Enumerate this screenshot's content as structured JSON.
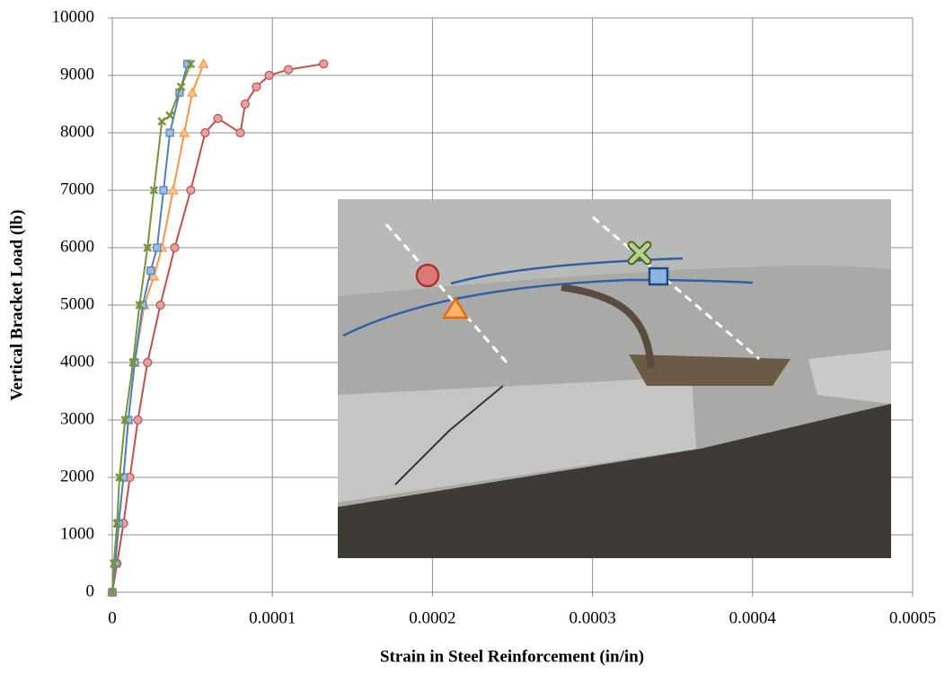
{
  "chart_data": {
    "type": "scatter",
    "xlabel": "Strain in Steel Reinforcement (in/in)",
    "ylabel": "Vertical Bracket Load (lb)",
    "xlim": [
      0,
      0.0005
    ],
    "xticks": [
      0,
      0.0001,
      0.0002,
      0.0003,
      0.0004,
      0.0005
    ],
    "ylim": [
      0,
      10000
    ],
    "yticks": [
      0,
      1000,
      2000,
      3000,
      4000,
      5000,
      6000,
      7000,
      8000,
      9000,
      10000
    ],
    "grid": true,
    "series": [
      {
        "color": "#c0504d",
        "fill": "#e6a0a0",
        "marker": "circle",
        "x": [
          0,
          3e-06,
          7e-06,
          1.1e-05,
          1.6e-05,
          2.2e-05,
          3e-05,
          3.9e-05,
          4.9e-05,
          5.8e-05,
          6.6e-05,
          8e-05,
          8.3e-05,
          9e-05,
          9.8e-05,
          0.00011,
          0.000132
        ],
        "values": [
          0,
          500,
          1200,
          2000,
          3000,
          4000,
          5000,
          6000,
          7000,
          8000,
          8250,
          8000,
          8500,
          8800,
          9000,
          9100,
          9200
        ]
      },
      {
        "color": "#f79646",
        "fill": "#fcc58f",
        "marker": "triangle",
        "x": [
          0,
          2e-06,
          4e-06,
          7e-06,
          1e-05,
          1.4e-05,
          2e-05,
          2.6e-05,
          3.1e-05,
          3.8e-05,
          4.5e-05,
          5e-05,
          5.7e-05
        ],
        "values": [
          0,
          500,
          1200,
          2000,
          3000,
          4000,
          5000,
          5500,
          6000,
          7000,
          8000,
          8700,
          9200
        ]
      },
      {
        "color": "#4f81bd",
        "fill": "#9bbbe0",
        "marker": "square",
        "x": [
          0,
          2e-06,
          4e-06,
          7e-06,
          1e-05,
          1.4e-05,
          1.9e-05,
          2.4e-05,
          2.8e-05,
          3.2e-05,
          3.6e-05,
          4.2e-05,
          4.7e-05
        ],
        "values": [
          0,
          500,
          1200,
          2000,
          3000,
          4000,
          5000,
          5600,
          6000,
          7000,
          8000,
          8700,
          9200
        ]
      },
      {
        "color": "#77933c",
        "fill": "#b7d28d",
        "marker": "x",
        "x": [
          0,
          1e-06,
          3e-06,
          4.5e-06,
          8e-06,
          1.3e-05,
          1.7e-05,
          2.2e-05,
          2.6e-05,
          3.1e-05,
          3.6e-05,
          4.3e-05,
          4.9e-05
        ],
        "values": [
          0,
          500,
          1200,
          2000,
          3000,
          4000,
          5000,
          6000,
          7000,
          8200,
          8300,
          8800,
          9200
        ]
      }
    ]
  }
}
